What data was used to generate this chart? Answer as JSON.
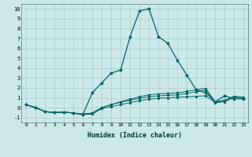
{
  "xlabel": "Humidex (Indice chaleur)",
  "bg_color": "#cce8e8",
  "line_color": "#006666",
  "grid_color": "#aacccc",
  "xlim": [
    -0.5,
    23.5
  ],
  "ylim": [
    -1.5,
    10.5
  ],
  "yticks": [
    -1,
    0,
    1,
    2,
    3,
    4,
    5,
    6,
    7,
    8,
    9,
    10
  ],
  "xticks": [
    0,
    1,
    2,
    3,
    4,
    5,
    6,
    7,
    8,
    9,
    10,
    11,
    12,
    13,
    14,
    15,
    16,
    17,
    18,
    19,
    20,
    21,
    22,
    23
  ],
  "series": [
    {
      "x": [
        0,
        1,
        2,
        3,
        4,
        5,
        6,
        7,
        8,
        9,
        10,
        11,
        12,
        13,
        14,
        15,
        16,
        17,
        18,
        19,
        20,
        21,
        22,
        23
      ],
      "y": [
        0.3,
        0.0,
        -0.4,
        -0.5,
        -0.45,
        -0.55,
        -0.7,
        -0.65,
        -0.1,
        0.1,
        0.3,
        0.5,
        0.7,
        0.85,
        0.95,
        1.0,
        1.05,
        1.1,
        1.15,
        1.2,
        0.5,
        0.6,
        1.0,
        0.9
      ]
    },
    {
      "x": [
        0,
        1,
        2,
        3,
        4,
        5,
        6,
        7,
        8,
        9,
        10,
        11,
        12,
        13,
        14,
        15,
        16,
        17,
        18,
        19,
        20,
        21,
        22,
        23
      ],
      "y": [
        0.3,
        0.0,
        -0.4,
        -0.5,
        -0.45,
        -0.55,
        -0.7,
        1.5,
        2.5,
        3.5,
        3.8,
        7.2,
        9.8,
        10.0,
        7.2,
        6.5,
        4.8,
        3.3,
        1.8,
        1.5,
        0.6,
        1.2,
        0.9,
        0.9
      ]
    },
    {
      "x": [
        0,
        1,
        2,
        3,
        4,
        5,
        6,
        7,
        8,
        9,
        10,
        11,
        12,
        13,
        14,
        15,
        16,
        17,
        18,
        19,
        20,
        21,
        22,
        23
      ],
      "y": [
        0.3,
        0.0,
        -0.4,
        -0.5,
        -0.45,
        -0.55,
        -0.65,
        -0.55,
        0.0,
        0.3,
        0.55,
        0.75,
        0.95,
        1.1,
        1.2,
        1.25,
        1.3,
        1.45,
        1.6,
        1.75,
        0.55,
        0.7,
        1.1,
        1.0
      ]
    },
    {
      "x": [
        0,
        1,
        2,
        3,
        4,
        5,
        6,
        7,
        8,
        9,
        10,
        11,
        12,
        13,
        14,
        15,
        16,
        17,
        18,
        19,
        20,
        21,
        22,
        23
      ],
      "y": [
        0.3,
        0.0,
        -0.4,
        -0.5,
        -0.45,
        -0.55,
        -0.65,
        -0.55,
        0.0,
        0.3,
        0.6,
        0.85,
        1.1,
        1.3,
        1.4,
        1.45,
        1.5,
        1.65,
        1.8,
        1.95,
        0.6,
        0.75,
        1.15,
        1.05
      ]
    }
  ]
}
